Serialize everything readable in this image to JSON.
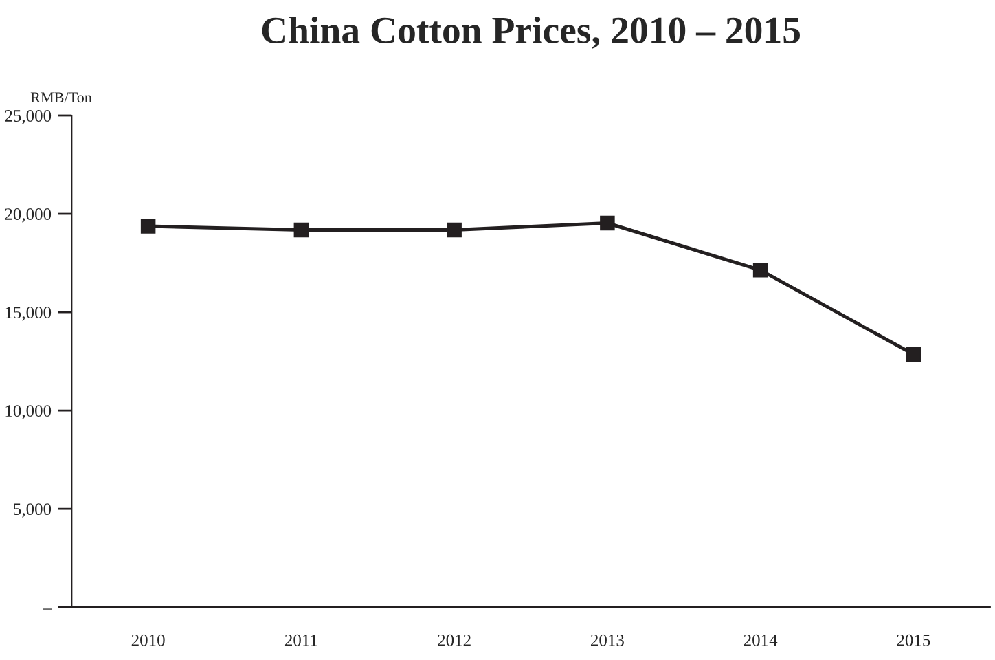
{
  "chart_data": {
    "type": "line",
    "title": "China Cotton Prices, 2010 – 2015",
    "ylabel": "RMB/Ton",
    "categories": [
      "2010",
      "2011",
      "2012",
      "2013",
      "2014",
      "2015"
    ],
    "series": [
      {
        "color": "#231f20",
        "values": [
          19370,
          19180,
          19180,
          19530,
          17140,
          12860
        ]
      }
    ],
    "ylim": [
      0,
      25000
    ],
    "yticks": [
      {
        "value": 0,
        "label": "–"
      },
      {
        "value": 5000,
        "label": "5,000"
      },
      {
        "value": 10000,
        "label": "10,000"
      },
      {
        "value": 15000,
        "label": "15,000"
      },
      {
        "value": 20000,
        "label": "20,000"
      },
      {
        "value": 25000,
        "label": "25,000"
      }
    ],
    "marker": "square",
    "line_style": "solid",
    "grid": false,
    "legend": false
  }
}
